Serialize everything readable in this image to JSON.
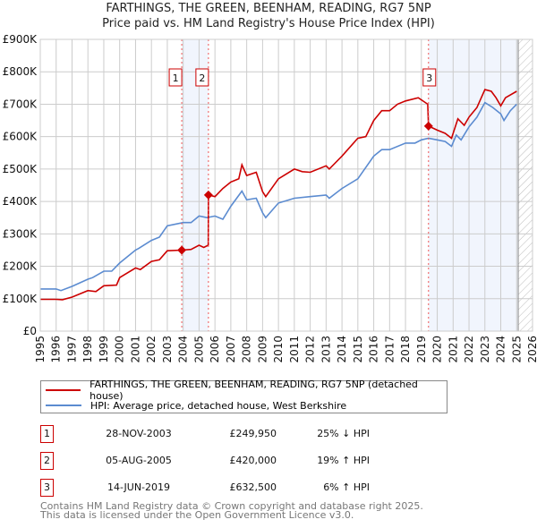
{
  "chart_data": {
    "type": "line",
    "title": "FARTHINGS, THE GREEN, BEENHAM, READING, RG7 5NP",
    "subtitle": "Price paid vs. HM Land Registry's House Price Index (HPI)",
    "xlim": [
      1995,
      2026
    ],
    "ylim": [
      0,
      900000
    ],
    "y_ticks": [
      {
        "v": 0,
        "label": "£0"
      },
      {
        "v": 100000,
        "label": "£100K"
      },
      {
        "v": 200000,
        "label": "£200K"
      },
      {
        "v": 300000,
        "label": "£300K"
      },
      {
        "v": 400000,
        "label": "£400K"
      },
      {
        "v": 500000,
        "label": "£500K"
      },
      {
        "v": 600000,
        "label": "£600K"
      },
      {
        "v": 700000,
        "label": "£700K"
      },
      {
        "v": 800000,
        "label": "£800K"
      },
      {
        "v": 900000,
        "label": "£900K"
      }
    ],
    "x_ticks": [
      "1995",
      "1996",
      "1997",
      "1998",
      "1999",
      "2000",
      "2001",
      "2002",
      "2003",
      "2004",
      "2005",
      "2006",
      "2007",
      "2008",
      "2009",
      "2010",
      "2011",
      "2012",
      "2013",
      "2014",
      "2015",
      "2016",
      "2017",
      "2018",
      "2019",
      "2020",
      "2021",
      "2022",
      "2023",
      "2024",
      "2025",
      "2026"
    ],
    "grid": true,
    "series": [
      {
        "name": "FARTHINGS, THE GREEN, BEENHAM, READING, RG7 5NP (detached house)",
        "color": "#cc0000",
        "x": [
          1995,
          1996,
          1996.4,
          1997,
          1998,
          1998.5,
          1999,
          1999.8,
          2000,
          2001,
          2001.3,
          2002,
          2002.5,
          2003,
          2003.9,
          2004.5,
          2005,
          2005.3,
          2005.58,
          2005.59,
          2006,
          2006.5,
          2007,
          2007.5,
          2007.7,
          2008,
          2008.6,
          2009,
          2009.2,
          2010,
          2011,
          2011.5,
          2012,
          2013,
          2013.2,
          2014,
          2015,
          2015.5,
          2016,
          2016.5,
          2017,
          2017.5,
          2018,
          2018.8,
          2019.4,
          2019.45,
          2020,
          2020.5,
          2020.9,
          2021.3,
          2021.7,
          2022,
          2022.5,
          2023,
          2023.4,
          2023.7,
          2024,
          2024.3,
          2025
        ],
        "values": [
          98000,
          98000,
          97000,
          105000,
          125000,
          122000,
          140000,
          142000,
          165000,
          195000,
          190000,
          215000,
          220000,
          248000,
          249950,
          252000,
          265000,
          258000,
          265000,
          420000,
          415000,
          440000,
          460000,
          470000,
          513000,
          480000,
          490000,
          430000,
          415000,
          470000,
          500000,
          492000,
          490000,
          510000,
          500000,
          540000,
          595000,
          600000,
          650000,
          680000,
          680000,
          700000,
          710000,
          720000,
          700000,
          632500,
          620000,
          610000,
          595000,
          655000,
          635000,
          660000,
          690000,
          745000,
          740000,
          720000,
          695000,
          720000,
          740000
        ]
      },
      {
        "name": "HPI: Average price, detached house, West Berkshire",
        "color": "#5b8bd0",
        "x": [
          1995,
          1996,
          1996.3,
          1997,
          1998,
          1998.3,
          1999,
          1999.5,
          2000,
          2001,
          2001.2,
          2002,
          2002.5,
          2003,
          2004,
          2004.5,
          2005,
          2005.5,
          2006,
          2006.5,
          2007,
          2007.7,
          2008,
          2008.6,
          2009,
          2009.2,
          2010,
          2011,
          2012,
          2013,
          2013.2,
          2014,
          2015,
          2016,
          2016.5,
          2017,
          2018,
          2018.6,
          2019,
          2019.45,
          2020,
          2020.5,
          2020.9,
          2021.2,
          2021.5,
          2022,
          2022.5,
          2023,
          2023.5,
          2024,
          2024.2,
          2024.6,
          2025
        ],
        "values": [
          130000,
          130000,
          125000,
          138000,
          160000,
          165000,
          185000,
          185000,
          210000,
          250000,
          255000,
          280000,
          290000,
          325000,
          335000,
          335000,
          355000,
          350000,
          355000,
          345000,
          385000,
          432000,
          405000,
          410000,
          365000,
          350000,
          395000,
          410000,
          415000,
          420000,
          410000,
          440000,
          470000,
          540000,
          560000,
          560000,
          580000,
          580000,
          590000,
          595000,
          590000,
          585000,
          570000,
          605000,
          590000,
          630000,
          660000,
          705000,
          690000,
          670000,
          650000,
          680000,
          700000
        ]
      }
    ],
    "sales": [
      {
        "id": "1",
        "date": "28-NOV-2003",
        "x": 2003.91,
        "price": "£249,950",
        "value": 249950,
        "hpi": "25% ↓ HPI"
      },
      {
        "id": "2",
        "date": "05-AUG-2005",
        "x": 2005.59,
        "price": "£420,000",
        "value": 420000,
        "hpi": "19% ↑ HPI"
      },
      {
        "id": "3",
        "date": "14-JUN-2019",
        "x": 2019.45,
        "price": "£632,500",
        "value": 632500,
        "hpi": "6% ↑ HPI"
      }
    ],
    "shaded_ranges": [
      [
        2003.91,
        2005.59
      ],
      [
        2019.45,
        2025.1
      ]
    ],
    "forecast_hatch_from": 2025.1,
    "legend_position": "below"
  },
  "legend": {
    "red": "FARTHINGS, THE GREEN, BEENHAM, READING, RG7 5NP (detached house)",
    "blue": "HPI: Average price, detached house, West Berkshire"
  },
  "footer": [
    "Contains HM Land Registry data © Crown copyright and database right 2025.",
    "This data is licensed under the Open Government Licence v3.0."
  ]
}
